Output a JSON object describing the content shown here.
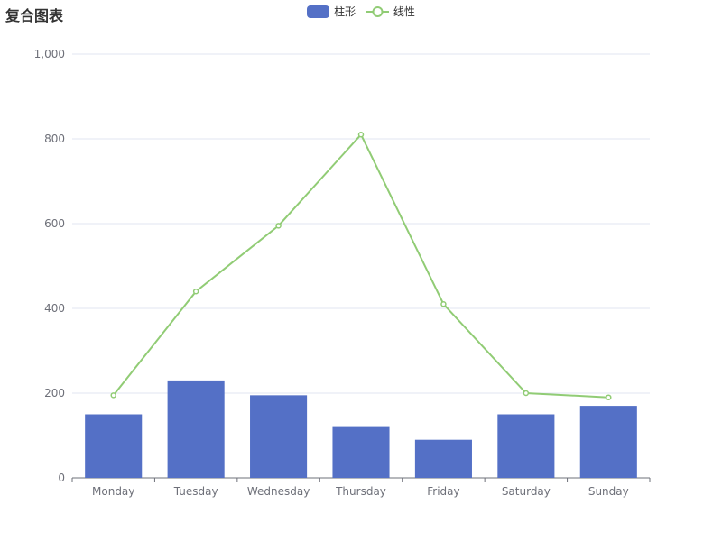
{
  "title": "复合图表",
  "legend": [
    {
      "name": "柱形",
      "type": "bar",
      "color": "#5470c6"
    },
    {
      "name": "线性",
      "type": "line",
      "color": "#91cc75"
    }
  ],
  "chart_data": {
    "type": "bar+line",
    "categories": [
      "Monday",
      "Tuesday",
      "Wednesday",
      "Thursday",
      "Friday",
      "Saturday",
      "Sunday"
    ],
    "series": [
      {
        "name": "柱形",
        "type": "bar",
        "color": "#5470c6",
        "values": [
          150,
          230,
          195,
          120,
          90,
          150,
          170
        ]
      },
      {
        "name": "线性",
        "type": "line",
        "color": "#91cc75",
        "values": [
          195,
          440,
          595,
          810,
          410,
          200,
          190
        ]
      }
    ],
    "ylim": [
      0,
      1000
    ],
    "yticks": [
      0,
      200,
      400,
      600,
      800,
      1000
    ],
    "ytick_labels": [
      "0",
      "200",
      "400",
      "600",
      "800",
      "1,000"
    ],
    "grid": true,
    "legend_position": "top-center"
  }
}
